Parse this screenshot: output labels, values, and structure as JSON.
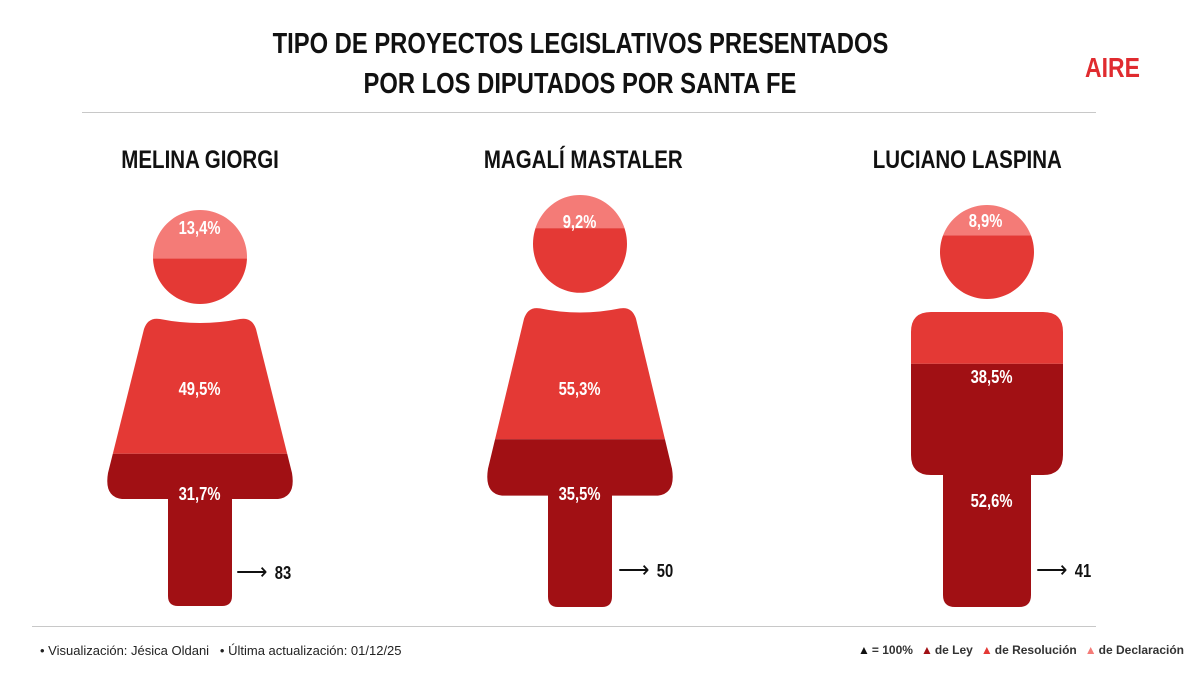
{
  "title_line1": "TIPO DE PROYECTOS LEGISLATIVOS PRESENTADOS",
  "title_line2": "POR LOS DIPUTADOS POR SANTA FE",
  "logo": "AIRE",
  "colors": {
    "ley": "#a11014",
    "resolucion": "#e43935",
    "declaracion": "#f47b77"
  },
  "chart_data": {
    "type": "pictograph",
    "title": "TIPO DE PROYECTOS LEGISLATIVOS PRESENTADOS POR LOS DIPUTADOS POR SANTA FE",
    "categories": [
      "de Declaración",
      "de Resolución",
      "de Ley"
    ],
    "people": [
      {
        "name": "MELINA GIORGI",
        "shape": "woman",
        "declaracion": 13.4,
        "resolucion": 49.5,
        "ley": 31.7,
        "declaracion_label": "13,4%",
        "resolucion_label": "49,5%",
        "ley_label": "31,7%",
        "total": "83"
      },
      {
        "name": "MAGALÍ MASTALER",
        "shape": "woman",
        "declaracion": 9.2,
        "resolucion": 55.3,
        "ley": 35.5,
        "declaracion_label": "9,2%",
        "resolucion_label": "55,3%",
        "ley_label": "35,5%",
        "total": "50"
      },
      {
        "name": "LUCIANO LASPINA",
        "shape": "man",
        "declaracion": 8.9,
        "resolucion": 38.5,
        "ley": 52.6,
        "declaracion_label": "8,9%",
        "resolucion_label": "38,5%",
        "ley_label": "52,6%",
        "total": "41"
      }
    ]
  },
  "footer": {
    "credit": "• Visualización: Jésica Oldani",
    "updated": "• Última actualización: 01/12/25"
  },
  "legend": {
    "full": "= 100%",
    "ley": "de Ley",
    "resolucion": "de Resolución",
    "declaracion": "de Declaración"
  }
}
